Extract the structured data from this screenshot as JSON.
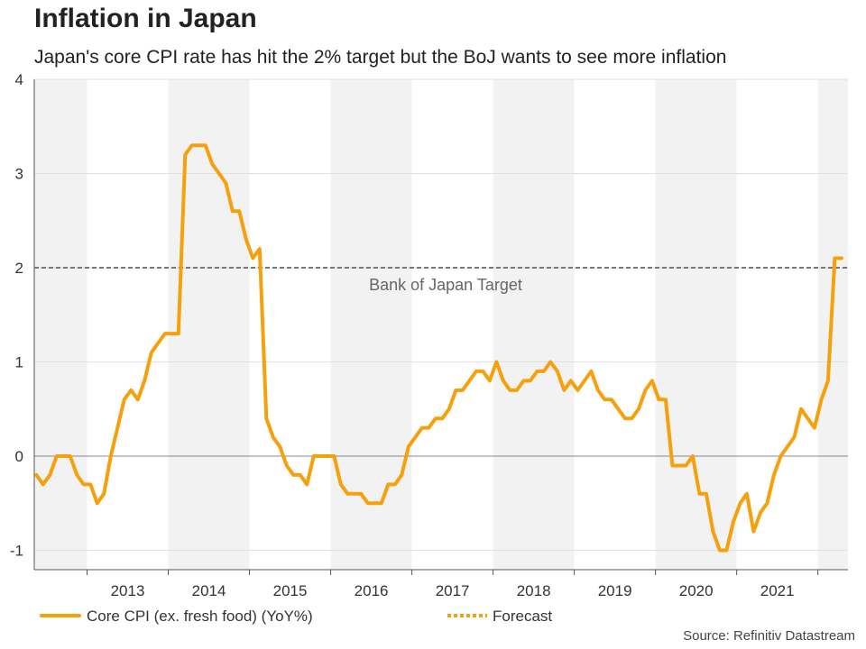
{
  "header": {
    "title": "Inflation in Japan",
    "subtitle": "Japan's core CPI rate has hit the 2% target but the BoJ wants to see more inflation"
  },
  "footer": {
    "source": "Source: Refinitiv Datastream"
  },
  "chart_data": {
    "type": "line",
    "xlim": [
      2012.35,
      2022.37
    ],
    "ylim": [
      -1.2,
      4
    ],
    "yticks": [
      -1,
      0,
      1,
      2,
      3,
      4
    ],
    "year_labels": [
      "2013",
      "2014",
      "2015",
      "2016",
      "2017",
      "2018",
      "2019",
      "2020",
      "2021"
    ],
    "shaded_years": [
      2012,
      2014,
      2016,
      2018,
      2020,
      2022
    ],
    "reference_line": {
      "value": 2,
      "label": "Bank of Japan Target"
    },
    "colors": {
      "series": "#f5a00c",
      "grid": "#e0e0e0",
      "shade": "#f2f2f2",
      "target": "#777777"
    },
    "legend_position": "bottom",
    "series": [
      {
        "name": "Core CPI (ex. fresh food) (YoY%)",
        "style": "solid",
        "points": [
          [
            2012.375,
            -0.2
          ],
          [
            2012.458,
            -0.3
          ],
          [
            2012.542,
            -0.2
          ],
          [
            2012.625,
            0
          ],
          [
            2012.708,
            0
          ],
          [
            2012.792,
            0
          ],
          [
            2012.875,
            -0.2
          ],
          [
            2012.958,
            -0.3
          ],
          [
            2013.042,
            -0.3
          ],
          [
            2013.125,
            -0.5
          ],
          [
            2013.208,
            -0.4
          ],
          [
            2013.292,
            0
          ],
          [
            2013.375,
            0.3
          ],
          [
            2013.458,
            0.6
          ],
          [
            2013.542,
            0.7
          ],
          [
            2013.625,
            0.6
          ],
          [
            2013.708,
            0.8
          ],
          [
            2013.792,
            1.1
          ],
          [
            2013.875,
            1.2
          ],
          [
            2013.958,
            1.3
          ],
          [
            2014.042,
            1.3
          ],
          [
            2014.125,
            1.3
          ],
          [
            2014.208,
            3.2
          ],
          [
            2014.292,
            3.3
          ],
          [
            2014.375,
            3.3
          ],
          [
            2014.458,
            3.3
          ],
          [
            2014.542,
            3.1
          ],
          [
            2014.625,
            3.0
          ],
          [
            2014.708,
            2.9
          ],
          [
            2014.792,
            2.6
          ],
          [
            2014.875,
            2.6
          ],
          [
            2014.958,
            2.3
          ],
          [
            2015.042,
            2.1
          ],
          [
            2015.125,
            2.2
          ],
          [
            2015.208,
            0.4
          ],
          [
            2015.292,
            0.2
          ],
          [
            2015.375,
            0.1
          ],
          [
            2015.458,
            -0.1
          ],
          [
            2015.542,
            -0.2
          ],
          [
            2015.625,
            -0.2
          ],
          [
            2015.708,
            -0.3
          ],
          [
            2015.792,
            0
          ],
          [
            2015.875,
            0
          ],
          [
            2015.958,
            0
          ],
          [
            2016.042,
            0
          ],
          [
            2016.125,
            -0.3
          ],
          [
            2016.208,
            -0.4
          ],
          [
            2016.292,
            -0.4
          ],
          [
            2016.375,
            -0.4
          ],
          [
            2016.458,
            -0.5
          ],
          [
            2016.542,
            -0.5
          ],
          [
            2016.625,
            -0.5
          ],
          [
            2016.708,
            -0.3
          ],
          [
            2016.792,
            -0.3
          ],
          [
            2016.875,
            -0.2
          ],
          [
            2016.958,
            0.1
          ],
          [
            2017.042,
            0.2
          ],
          [
            2017.125,
            0.3
          ],
          [
            2017.208,
            0.3
          ],
          [
            2017.292,
            0.4
          ],
          [
            2017.375,
            0.4
          ],
          [
            2017.458,
            0.5
          ],
          [
            2017.542,
            0.7
          ],
          [
            2017.625,
            0.7
          ],
          [
            2017.708,
            0.8
          ],
          [
            2017.792,
            0.9
          ],
          [
            2017.875,
            0.9
          ],
          [
            2017.958,
            0.8
          ],
          [
            2018.042,
            1.0
          ],
          [
            2018.125,
            0.8
          ],
          [
            2018.208,
            0.7
          ],
          [
            2018.292,
            0.7
          ],
          [
            2018.375,
            0.8
          ],
          [
            2018.458,
            0.8
          ],
          [
            2018.542,
            0.9
          ],
          [
            2018.625,
            0.9
          ],
          [
            2018.708,
            1.0
          ],
          [
            2018.792,
            0.9
          ],
          [
            2018.875,
            0.7
          ],
          [
            2018.958,
            0.8
          ],
          [
            2019.042,
            0.7
          ],
          [
            2019.125,
            0.8
          ],
          [
            2019.208,
            0.9
          ],
          [
            2019.292,
            0.7
          ],
          [
            2019.375,
            0.6
          ],
          [
            2019.458,
            0.6
          ],
          [
            2019.542,
            0.5
          ],
          [
            2019.625,
            0.4
          ],
          [
            2019.708,
            0.4
          ],
          [
            2019.792,
            0.5
          ],
          [
            2019.875,
            0.7
          ],
          [
            2019.958,
            0.8
          ],
          [
            2020.042,
            0.6
          ],
          [
            2020.125,
            0.6
          ],
          [
            2020.208,
            -0.1
          ],
          [
            2020.292,
            -0.1
          ],
          [
            2020.375,
            -0.1
          ],
          [
            2020.458,
            0
          ],
          [
            2020.542,
            -0.4
          ],
          [
            2020.625,
            -0.4
          ],
          [
            2020.708,
            -0.8
          ],
          [
            2020.792,
            -1.0
          ],
          [
            2020.875,
            -1.0
          ],
          [
            2020.958,
            -0.7
          ],
          [
            2021.042,
            -0.5
          ],
          [
            2021.125,
            -0.4
          ],
          [
            2021.208,
            -0.8
          ],
          [
            2021.292,
            -0.6
          ],
          [
            2021.375,
            -0.5
          ],
          [
            2021.458,
            -0.2
          ],
          [
            2021.542,
            0
          ],
          [
            2021.625,
            0.1
          ],
          [
            2021.708,
            0.2
          ],
          [
            2021.792,
            0.5
          ],
          [
            2021.875,
            0.4
          ],
          [
            2021.958,
            0.3
          ],
          [
            2022.042,
            0.6
          ],
          [
            2022.125,
            0.8
          ],
          [
            2022.208,
            2.1
          ],
          [
            2022.292,
            2.1
          ]
        ]
      },
      {
        "name": "Forecast",
        "style": "dotted",
        "points": []
      }
    ]
  }
}
